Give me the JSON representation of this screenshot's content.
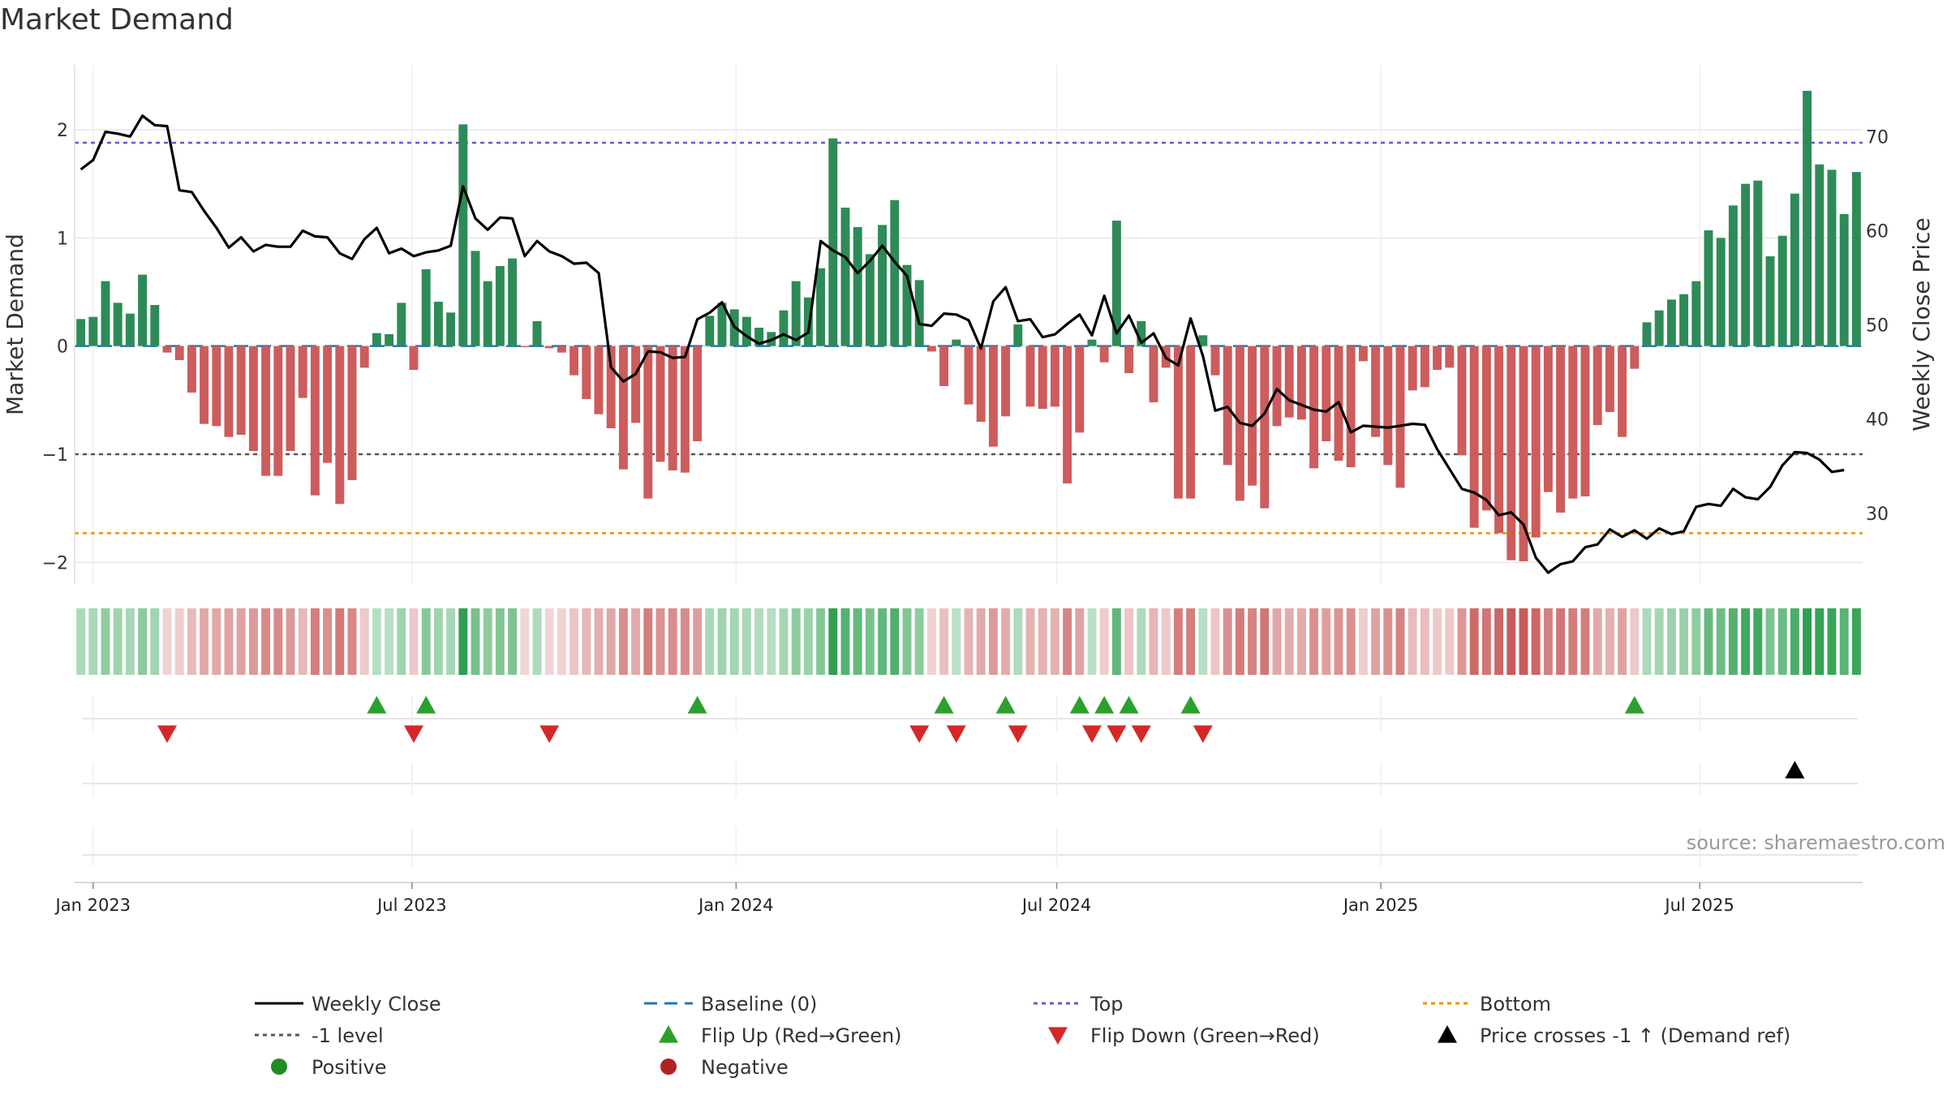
{
  "title": "Market Demand",
  "chart_data": {
    "type": "bar",
    "title": "Market Demand",
    "ylabel": "Market Demand",
    "y2label": "Weekly Close Price",
    "ylim": [
      -2.2,
      2.6
    ],
    "y2lim": [
      22.5,
      77.6
    ],
    "yticks": [
      2,
      1,
      0,
      -1,
      -2
    ],
    "ytick_labels": [
      "2",
      "1",
      "0",
      "−1",
      "−2"
    ],
    "y2ticks": [
      70,
      60,
      50,
      40,
      30
    ],
    "y2tick_labels": [
      "70",
      "60",
      "50",
      "40",
      "30"
    ],
    "x_start": "2022-12-25",
    "x_step_days": 7,
    "xticks": [
      "2023-01-01",
      "2023-07-01",
      "2024-01-01",
      "2024-07-01",
      "2025-01-01",
      "2025-07-01"
    ],
    "xtick_labels": [
      "Jan 2023",
      "Jul 2023",
      "Jan 2024",
      "Jul 2024",
      "Jan 2025",
      "Jul 2025"
    ],
    "reference_lines": {
      "top": 1.88,
      "minus_one": -1.0,
      "bottom": -1.73,
      "baseline": 0
    },
    "demand": [
      0.25,
      0.27,
      0.6,
      0.4,
      0.3,
      0.66,
      0.38,
      -0.06,
      -0.13,
      -0.43,
      -0.72,
      -0.74,
      -0.84,
      -0.82,
      -0.97,
      -1.2,
      -1.2,
      -0.97,
      -0.48,
      -1.38,
      -1.08,
      -1.46,
      -1.24,
      -0.2,
      0.12,
      0.11,
      0.4,
      -0.22,
      0.71,
      0.41,
      0.31,
      2.05,
      0.88,
      0.6,
      0.74,
      0.81,
      -0.01,
      0.23,
      -0.02,
      -0.06,
      -0.27,
      -0.49,
      -0.63,
      -0.76,
      -1.14,
      -0.71,
      -1.41,
      -1.07,
      -1.15,
      -1.17,
      -0.88,
      0.28,
      0.4,
      0.34,
      0.27,
      0.17,
      0.13,
      0.33,
      0.6,
      0.45,
      0.72,
      1.92,
      1.28,
      1.1,
      0.85,
      1.12,
      1.35,
      0.75,
      0.61,
      -0.05,
      -0.37,
      0.06,
      -0.54,
      -0.7,
      -0.93,
      -0.65,
      0.2,
      -0.56,
      -0.58,
      -0.56,
      -1.27,
      -0.8,
      0.06,
      -0.15,
      1.16,
      -0.25,
      0.23,
      -0.52,
      -0.2,
      -1.41,
      -1.41,
      0.1,
      -0.27,
      -1.1,
      -1.43,
      -1.29,
      -1.5,
      -0.74,
      -0.66,
      -0.68,
      -1.13,
      -0.88,
      -1.06,
      -1.12,
      -0.14,
      -0.84,
      -1.1,
      -1.31,
      -0.41,
      -0.38,
      -0.22,
      -0.2,
      -1.01,
      -1.68,
      -1.52,
      -1.73,
      -1.98,
      -1.99,
      -1.77,
      -1.35,
      -1.54,
      -1.41,
      -1.39,
      -0.73,
      -0.61,
      -0.84,
      -0.21,
      0.22,
      0.33,
      0.43,
      0.48,
      0.6,
      1.07,
      1.0,
      1.3,
      1.5,
      1.53,
      0.83,
      1.02,
      1.41,
      2.36,
      1.68,
      1.63,
      1.22,
      1.61
    ],
    "price": [
      66.5,
      67.5,
      70.5,
      70.3,
      70,
      72.2,
      71.2,
      71.1,
      64.3,
      64.1,
      62.1,
      60.3,
      58.2,
      59.3,
      57.8,
      58.5,
      58.3,
      58.3,
      60,
      59.4,
      59.3,
      57.6,
      57,
      59.1,
      60.3,
      57.6,
      58.1,
      57.3,
      57.7,
      57.9,
      58.4,
      64.7,
      61.3,
      60.1,
      61.4,
      61.3,
      57.3,
      58.9,
      57.8,
      57.3,
      56.5,
      56.6,
      55.5,
      45.5,
      44,
      44.8,
      47.2,
      47.1,
      46.5,
      46.6,
      50.6,
      51.3,
      52.4,
      49.8,
      48.8,
      48,
      48.4,
      49,
      48.4,
      49.2,
      58.9,
      57.9,
      57.2,
      55.5,
      56.8,
      58.4,
      56.7,
      55.2,
      50.1,
      49.9,
      51.2,
      51.1,
      50.5,
      47.5,
      52.5,
      54,
      50.4,
      50.6,
      48.7,
      49,
      50.1,
      51.1,
      48.9,
      53.1,
      49.1,
      51,
      48.1,
      49.1,
      46.5,
      45.7,
      50.7,
      46.7,
      40.9,
      41.3,
      39.6,
      39.3,
      40.6,
      43.2,
      42,
      41.5,
      41,
      40.8,
      41.8,
      38.6,
      39.3,
      39.2,
      39.1,
      39.3,
      39.5,
      39.4,
      36.8,
      34.7,
      32.6,
      32.2,
      31.4,
      29.8,
      30.1,
      28.8,
      25.3,
      23.7,
      24.6,
      24.9,
      26.4,
      26.7,
      28.3,
      27.5,
      28.2,
      27.3,
      28.4,
      27.8,
      28.1,
      30.7,
      31,
      30.8,
      32.6,
      31.7,
      31.5,
      32.8,
      35.1,
      36.5,
      36.4,
      35.7,
      34.4,
      34.6
    ],
    "flip_up_weeks": [
      24,
      28,
      50,
      70,
      75,
      81,
      83,
      85,
      90,
      126
    ],
    "flip_down_weeks": [
      7,
      27,
      38,
      68,
      71,
      76,
      82,
      84,
      86,
      91
    ],
    "price_cross_weeks": [
      139
    ],
    "source": "source: sharemaestro.com",
    "legend": [
      {
        "label": "Weekly Close",
        "kind": "line-solid",
        "color": "#000000"
      },
      {
        "label": "Baseline (0)",
        "kind": "line-dashed",
        "color": "#1f77b4"
      },
      {
        "label": "Top",
        "kind": "line-dotted",
        "color": "#5b5bd6"
      },
      {
        "label": "Bottom",
        "kind": "line-dotted",
        "color": "#e69500"
      },
      {
        "label": "-1 level",
        "kind": "line-dotted",
        "color": "#555555"
      },
      {
        "label": "Flip Up (Red→Green)",
        "kind": "tri-up",
        "color": "#2ca02c"
      },
      {
        "label": "Flip Down (Green→Red)",
        "kind": "tri-down",
        "color": "#d62728"
      },
      {
        "label": "Price crosses -1 ↑ (Demand ref)",
        "kind": "tri-up",
        "color": "#000000"
      },
      {
        "label": "Positive",
        "kind": "dot",
        "color": "#228b22"
      },
      {
        "label": "Negative",
        "kind": "dot",
        "color": "#b22222"
      }
    ]
  },
  "colors": {
    "positive_bar": "#2e8b57",
    "negative_bar": "#cd5c5c",
    "price_line": "#000000",
    "grid": "#e6e6e6"
  }
}
